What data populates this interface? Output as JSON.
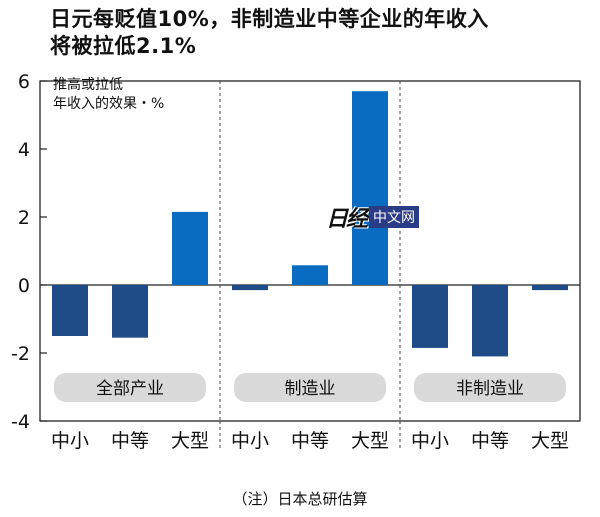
{
  "title_lines": [
    "日元每贬值10%，非制造业中等企业的年收入",
    "将被拉低2.1%"
  ],
  "ylabel_lines": [
    "推高或拉低",
    "年收入的效果・%"
  ],
  "note": "（注）日本总研估算",
  "watermark": {
    "logo": "日经",
    "text": "中文网"
  },
  "colors": {
    "negative": "#1f4b86",
    "positive": "#0a6cc0",
    "pill": "#d9d9d9"
  },
  "chart_data": {
    "type": "bar",
    "title": "日元每贬值10%，非制造业中等企业的年收入将被拉低2.1%",
    "ylabel": "推高或拉低年收入的效果・%",
    "ylim": [
      -4,
      6
    ],
    "yticks": [
      6,
      4,
      2,
      0,
      -2,
      -4
    ],
    "grid": false,
    "groups": [
      {
        "name": "全部产业",
        "categories": [
          "中小",
          "中等",
          "大型"
        ],
        "values": [
          -1.5,
          -1.55,
          2.15
        ]
      },
      {
        "name": "制造业",
        "categories": [
          "中小",
          "中等",
          "大型"
        ],
        "values": [
          -0.15,
          0.58,
          5.7
        ]
      },
      {
        "name": "非制造业",
        "categories": [
          "中小",
          "中等",
          "大型"
        ],
        "values": [
          -1.85,
          -2.1,
          -0.15
        ]
      }
    ]
  }
}
